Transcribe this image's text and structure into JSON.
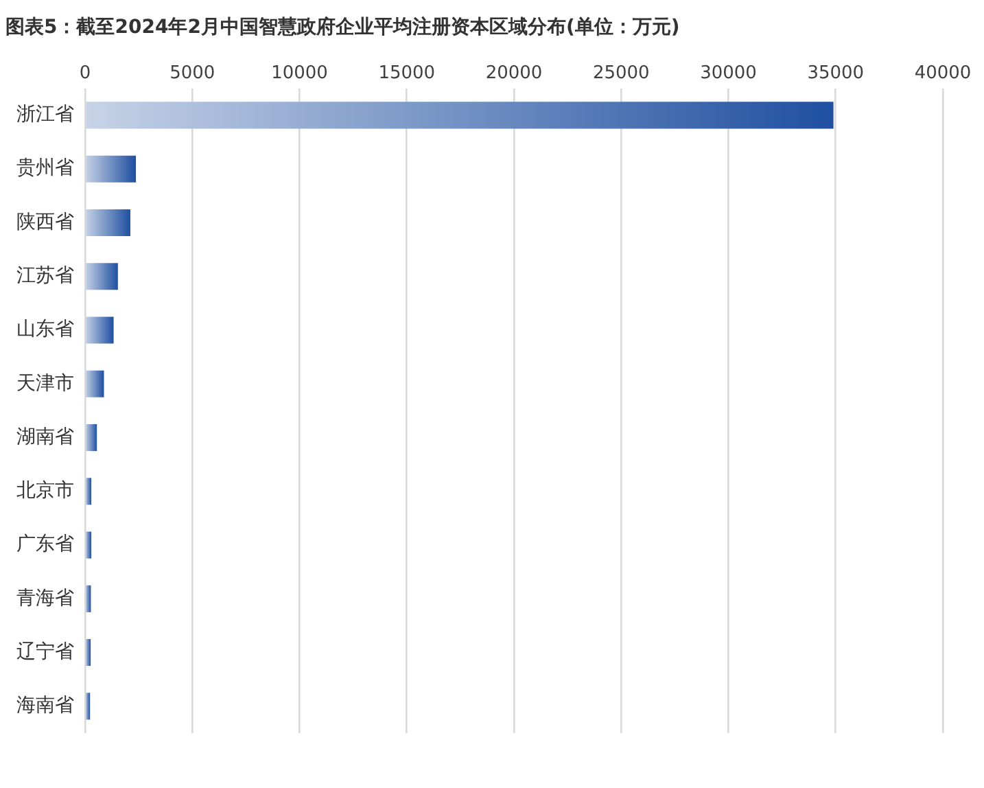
{
  "chart_data": {
    "type": "bar",
    "orientation": "horizontal",
    "title": "图表5：截至2024年2月中国智慧政府企业平均注册资本区域分布(单位：万元)",
    "categories": [
      "浙江省",
      "贵州省",
      "陕西省",
      "江苏省",
      "山东省",
      "天津市",
      "湖南省",
      "北京市",
      "广东省",
      "青海省",
      "辽宁省",
      "海南省"
    ],
    "values": [
      34900,
      2370,
      2110,
      1530,
      1330,
      880,
      550,
      290,
      290,
      270,
      260,
      230
    ],
    "color": "#1f4fa0",
    "xlim": [
      0,
      40000
    ],
    "xticks": [
      0,
      5000,
      10000,
      15000,
      20000,
      25000,
      30000,
      35000,
      40000
    ],
    "grid": "x",
    "legend": false
  }
}
